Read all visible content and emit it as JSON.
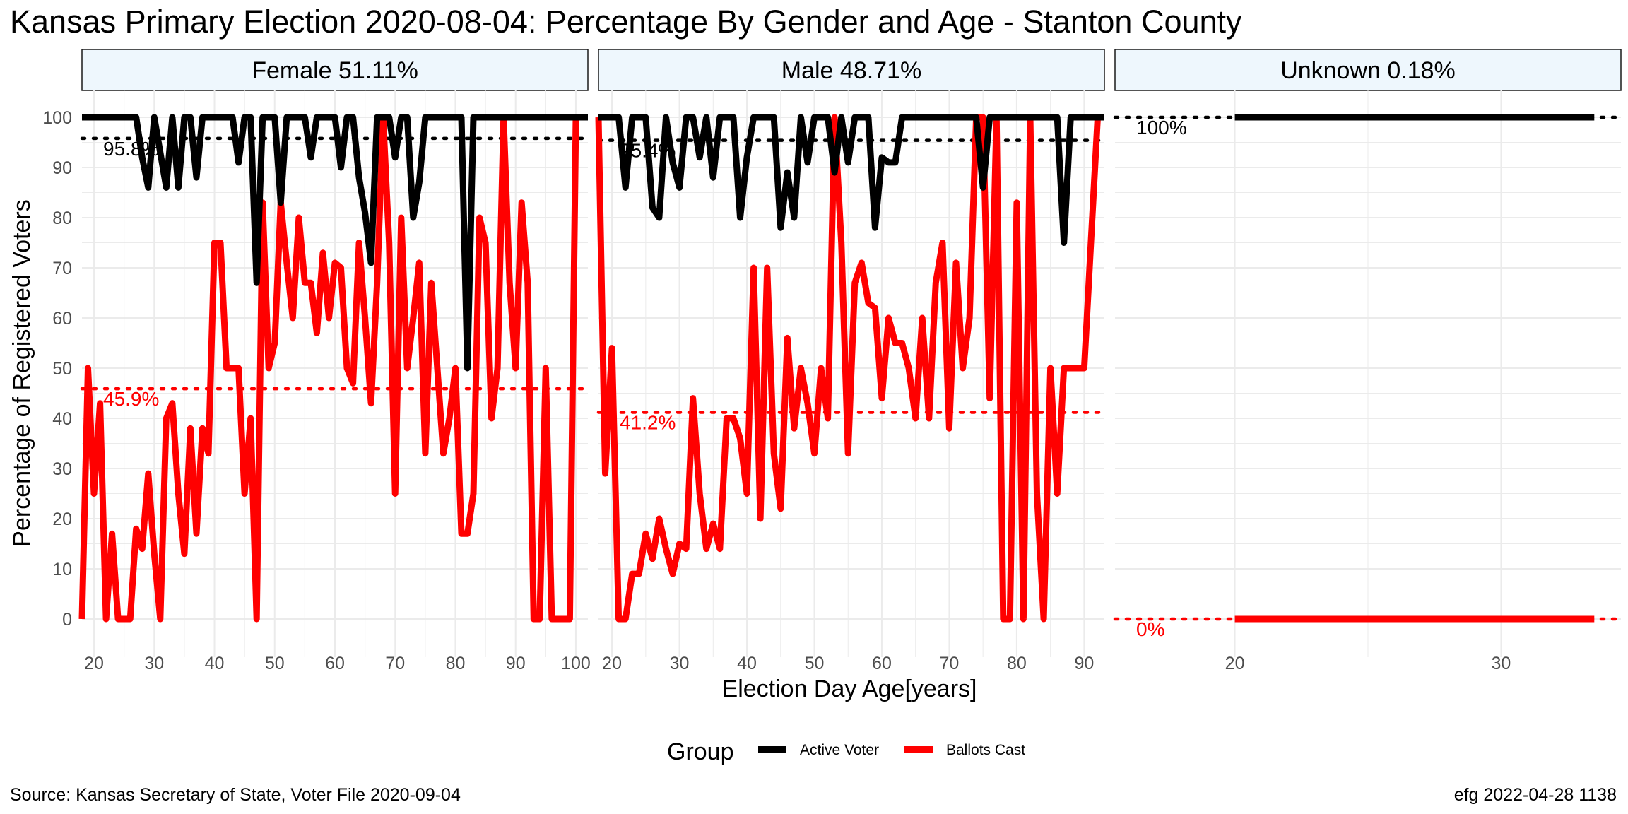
{
  "chart_data": {
    "type": "line",
    "title": "Kansas Primary Election 2020-08-04:  Percentage By Gender and Age - Stanton County",
    "xlabel": "Election Day Age[years]",
    "ylabel": "Percentage of Registered Voters",
    "caption_left": "Source:  Kansas Secretary of State, Voter File  2020-09-04",
    "caption_right": "efg 2022-04-28 1138",
    "legend": {
      "title": "Group",
      "position": "bottom",
      "items": [
        {
          "label": "Active Voter",
          "color": "#000000"
        },
        {
          "label": "Ballots Cast",
          "color": "#ff0000"
        }
      ]
    },
    "ylim": [
      0,
      100
    ],
    "yticks": [
      0,
      10,
      20,
      30,
      40,
      50,
      60,
      70,
      80,
      90,
      100
    ],
    "panels": [
      {
        "strip": "Female 51.11%",
        "xlim": [
          18,
          102
        ],
        "xticks": [
          20,
          30,
          40,
          50,
          60,
          70,
          80,
          90,
          100
        ],
        "ref_lines": [
          {
            "series": "Active Voter",
            "value": 95.8,
            "label": "95.8%"
          },
          {
            "series": "Ballots Cast",
            "value": 45.9,
            "label": "45.9%"
          }
        ],
        "series": [
          {
            "name": "Active Voter",
            "x": [
              18,
              19,
              20,
              21,
              22,
              23,
              24,
              25,
              26,
              27,
              28,
              29,
              30,
              31,
              32,
              33,
              34,
              35,
              36,
              37,
              38,
              39,
              40,
              41,
              42,
              43,
              44,
              45,
              46,
              47,
              48,
              49,
              50,
              51,
              52,
              53,
              54,
              55,
              56,
              57,
              58,
              59,
              60,
              61,
              62,
              63,
              64,
              65,
              66,
              67,
              68,
              69,
              70,
              71,
              72,
              73,
              74,
              75,
              76,
              77,
              78,
              79,
              80,
              81,
              82,
              83,
              84,
              85,
              86,
              87,
              88,
              89,
              90,
              91,
              92,
              93,
              94,
              95,
              96,
              97,
              98,
              99,
              100,
              101,
              102
            ],
            "y": [
              100,
              100,
              100,
              100,
              100,
              100,
              100,
              100,
              100,
              100,
              92,
              86,
              100,
              93,
              86,
              100,
              86,
              100,
              100,
              88,
              100,
              100,
              100,
              100,
              100,
              100,
              91,
              100,
              100,
              67,
              100,
              100,
              100,
              83,
              100,
              100,
              100,
              100,
              92,
              100,
              100,
              100,
              100,
              90,
              100,
              100,
              88,
              81,
              71,
              100,
              100,
              100,
              92,
              100,
              100,
              80,
              87,
              100,
              100,
              100,
              100,
              100,
              100,
              100,
              50,
              100,
              100,
              100,
              100,
              100,
              100,
              100,
              100,
              100,
              100,
              100,
              100,
              100,
              100,
              100,
              100,
              100,
              100,
              100,
              100
            ]
          },
          {
            "name": "Ballots Cast",
            "x": [
              18,
              19,
              20,
              21,
              22,
              23,
              24,
              25,
              26,
              27,
              28,
              29,
              30,
              31,
              32,
              33,
              34,
              35,
              36,
              37,
              38,
              39,
              40,
              41,
              42,
              43,
              44,
              45,
              46,
              47,
              48,
              49,
              50,
              51,
              52,
              53,
              54,
              55,
              56,
              57,
              58,
              59,
              60,
              61,
              62,
              63,
              64,
              65,
              66,
              67,
              68,
              69,
              70,
              71,
              72,
              73,
              74,
              75,
              76,
              77,
              78,
              79,
              80,
              81,
              82,
              83,
              84,
              85,
              86,
              87,
              88,
              89,
              90,
              91,
              92,
              93,
              94,
              95,
              96,
              97,
              98,
              99,
              100,
              101,
              102
            ],
            "y": [
              0,
              50,
              25,
              43,
              0,
              17,
              0,
              0,
              0,
              18,
              14,
              29,
              13,
              0,
              40,
              43,
              25,
              13,
              38,
              17,
              38,
              33,
              75,
              75,
              50,
              50,
              50,
              25,
              40,
              0,
              83,
              50,
              55,
              83,
              71,
              60,
              80,
              67,
              67,
              57,
              73,
              60,
              71,
              70,
              50,
              47,
              75,
              60,
              43,
              67,
              100,
              75,
              25,
              80,
              50,
              60,
              71,
              33,
              67,
              50,
              33,
              40,
              50,
              17,
              17,
              25,
              80,
              75,
              40,
              50,
              100,
              67,
              50,
              83,
              67,
              0,
              0,
              50,
              0,
              0,
              0,
              0,
              100,
              100,
              100
            ]
          }
        ]
      },
      {
        "strip": "Male 48.71%",
        "xlim": [
          18,
          93
        ],
        "xticks": [
          20,
          30,
          40,
          50,
          60,
          70,
          80,
          90
        ],
        "ref_lines": [
          {
            "series": "Active Voter",
            "value": 95.4,
            "label": "95.4%"
          },
          {
            "series": "Ballots Cast",
            "value": 41.2,
            "label": "41.2%"
          }
        ],
        "series": [
          {
            "name": "Active Voter",
            "x": [
              18,
              19,
              20,
              21,
              22,
              23,
              24,
              25,
              26,
              27,
              28,
              29,
              30,
              31,
              32,
              33,
              34,
              35,
              36,
              37,
              38,
              39,
              40,
              41,
              42,
              43,
              44,
              45,
              46,
              47,
              48,
              49,
              50,
              51,
              52,
              53,
              54,
              55,
              56,
              57,
              58,
              59,
              60,
              61,
              62,
              63,
              64,
              65,
              66,
              67,
              68,
              69,
              70,
              71,
              72,
              73,
              74,
              75,
              76,
              77,
              78,
              79,
              80,
              81,
              82,
              83,
              84,
              85,
              86,
              87,
              88,
              89,
              90,
              91,
              92,
              93
            ],
            "y": [
              100,
              100,
              100,
              100,
              86,
              100,
              100,
              100,
              82,
              80,
              100,
              91,
              86,
              100,
              100,
              92,
              100,
              88,
              100,
              100,
              100,
              80,
              92,
              100,
              100,
              100,
              100,
              78,
              89,
              80,
              100,
              91,
              100,
              100,
              100,
              89,
              100,
              91,
              100,
              100,
              100,
              78,
              92,
              91,
              91,
              100,
              100,
              100,
              100,
              100,
              100,
              100,
              100,
              100,
              100,
              100,
              100,
              86,
              100,
              100,
              100,
              100,
              100,
              100,
              100,
              100,
              100,
              100,
              100,
              75,
              100,
              100,
              100,
              100,
              100,
              100
            ]
          },
          {
            "name": "Ballots Cast",
            "x": [
              18,
              19,
              20,
              21,
              22,
              23,
              24,
              25,
              26,
              27,
              28,
              29,
              30,
              31,
              32,
              33,
              34,
              35,
              36,
              37,
              38,
              39,
              40,
              41,
              42,
              43,
              44,
              45,
              46,
              47,
              48,
              49,
              50,
              51,
              52,
              53,
              54,
              55,
              56,
              57,
              58,
              59,
              60,
              61,
              62,
              63,
              64,
              65,
              66,
              67,
              68,
              69,
              70,
              71,
              72,
              73,
              74,
              75,
              76,
              77,
              78,
              79,
              80,
              81,
              82,
              83,
              84,
              85,
              86,
              87,
              88,
              89,
              90,
              91,
              92,
              93
            ],
            "y": [
              100,
              29,
              54,
              0,
              0,
              9,
              9,
              17,
              12,
              20,
              14,
              9,
              15,
              14,
              44,
              25,
              14,
              19,
              14,
              40,
              40,
              36,
              25,
              70,
              20,
              70,
              33,
              22,
              56,
              38,
              50,
              43,
              33,
              50,
              40,
              100,
              75,
              33,
              67,
              71,
              63,
              62,
              44,
              60,
              55,
              55,
              50,
              40,
              60,
              40,
              67,
              75,
              38,
              71,
              50,
              60,
              100,
              100,
              44,
              100,
              0,
              0,
              83,
              0,
              100,
              25,
              0,
              50,
              25,
              50,
              50,
              50,
              50,
              75,
              100,
              100
            ]
          }
        ]
      },
      {
        "strip": "Unknown 0.18%",
        "xlim": [
          15.5,
          34.5
        ],
        "xticks": [
          20,
          30
        ],
        "ref_lines": [
          {
            "series": "Active Voter",
            "value": 100,
            "label": "100%"
          },
          {
            "series": "Ballots Cast",
            "value": 0,
            "label": "0%"
          }
        ],
        "series": [
          {
            "name": "Active Voter",
            "x": [
              20,
              33.5
            ],
            "y": [
              100,
              100
            ]
          },
          {
            "name": "Ballots Cast",
            "x": [
              20,
              33.5
            ],
            "y": [
              0,
              0
            ]
          }
        ]
      }
    ]
  }
}
